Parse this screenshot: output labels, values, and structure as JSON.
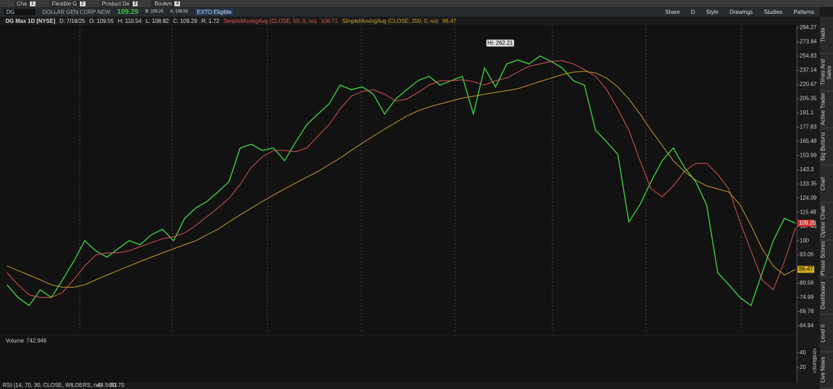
{
  "tabs": [
    {
      "label": "Cha",
      "number": 1
    },
    {
      "label": "Flexible G",
      "number": 2
    },
    {
      "label": "Product De",
      "number": 3
    },
    {
      "label": "Bookm",
      "number": 4
    }
  ],
  "toolbar": {
    "symbol": "DG",
    "company": "DOLLAR GEN CORP NEW",
    "last": 109.29,
    "bid": "B: 109.25",
    "ask": "A: 109.53",
    "exto": "EXTO Eligible",
    "buttons": [
      "Share",
      "D",
      "Style",
      "Drawings",
      "Studies",
      "Patterns"
    ]
  },
  "side_tabs": [
    "Trade",
    "Times And Sales",
    "Active Trader",
    "Big Buttons",
    "Chart",
    "Option Chain",
    "Phase Scores",
    "Dashboard",
    "Level II",
    "Live News"
  ],
  "chart_data": {
    "type": "line",
    "title": "DG Max 1D [NYSE]",
    "header": [
      "D: 7/18/25",
      "O: 109.55",
      "H: 110.54",
      "L: 108.82",
      "C: 109.29",
      "R: 1.72"
    ],
    "annotation": "Hi: 262.21",
    "log_scale": true,
    "grid": false,
    "ylim": [
      62.7,
      298.4
    ],
    "yticks": [
      294.27,
      273.84,
      254.83,
      237.14,
      220.67,
      205.35,
      191.1,
      177.83,
      165.48,
      153.99,
      143.3,
      133.35,
      124.09,
      115.48,
      107.46,
      100,
      93.06,
      80.58,
      74.99,
      69.78,
      64.94
    ],
    "series": [
      {
        "name": "DG Max 1D [NYSE]",
        "color": "#3cc83c",
        "values": [
          80,
          75,
          72,
          78,
          75,
          82,
          90,
          100,
          95,
          92,
          96,
          100,
          98,
          103,
          106,
          100,
          112,
          118,
          122,
          128,
          135,
          160,
          163,
          158,
          160,
          150,
          165,
          180,
          190,
          200,
          220,
          215,
          218,
          210,
          190,
          205,
          215,
          225,
          230,
          220,
          225,
          230,
          190,
          240,
          218,
          245,
          250,
          245,
          255,
          248,
          240,
          225,
          220,
          175,
          165,
          155,
          110,
          120,
          135,
          150,
          160,
          145,
          135,
          120,
          85,
          80,
          75,
          72,
          85,
          100,
          112,
          109.29
        ]
      },
      {
        "name": "SimpleMovingAvg (CLOSE, 50, 0, no)",
        "color": "#e05555",
        "values": [
          85,
          80,
          76,
          75,
          75,
          77,
          82,
          88,
          93,
          94,
          94,
          95,
          97,
          99,
          101,
          102,
          104,
          108,
          113,
          118,
          124,
          133,
          145,
          153,
          158,
          158,
          157,
          160,
          170,
          180,
          195,
          208,
          213,
          215,
          210,
          203,
          205,
          212,
          220,
          225,
          225,
          226,
          224,
          220,
          225,
          228,
          235,
          242,
          245,
          248,
          249,
          245,
          238,
          230,
          215,
          195,
          175,
          150,
          130,
          125,
          132,
          142,
          148,
          148,
          140,
          130,
          110,
          95,
          82,
          78,
          90,
          106.71
        ]
      },
      {
        "name": "SimpleMovingAvg (CLOSE, 200, 0, no)",
        "color": "#c9a227",
        "values": [
          88,
          86,
          84,
          82,
          80,
          79,
          79,
          80,
          82,
          84,
          86,
          88,
          90,
          92,
          94,
          96,
          98,
          100,
          103,
          106,
          110,
          114,
          118,
          122,
          126,
          130,
          134,
          138,
          142,
          147,
          152,
          158,
          164,
          170,
          176,
          182,
          188,
          193,
          197,
          200,
          203,
          206,
          208,
          210,
          212,
          214,
          216,
          220,
          224,
          228,
          232,
          235,
          236,
          234,
          228,
          218,
          205,
          190,
          175,
          162,
          150,
          142,
          136,
          132,
          130,
          128,
          120,
          108,
          96,
          88,
          84,
          86.47
        ]
      }
    ]
  },
  "volume": {
    "title": "Volume",
    "value": "742,946",
    "unit": "<millions>",
    "ylim": [
      0,
      62
    ],
    "yticks": [
      40,
      20
    ]
  },
  "rsi": {
    "title": "RSI (14, 70, 30, CLOSE, WILDERS, no)",
    "value": 44.5651,
    "levels": [
      30,
      70
    ]
  }
}
